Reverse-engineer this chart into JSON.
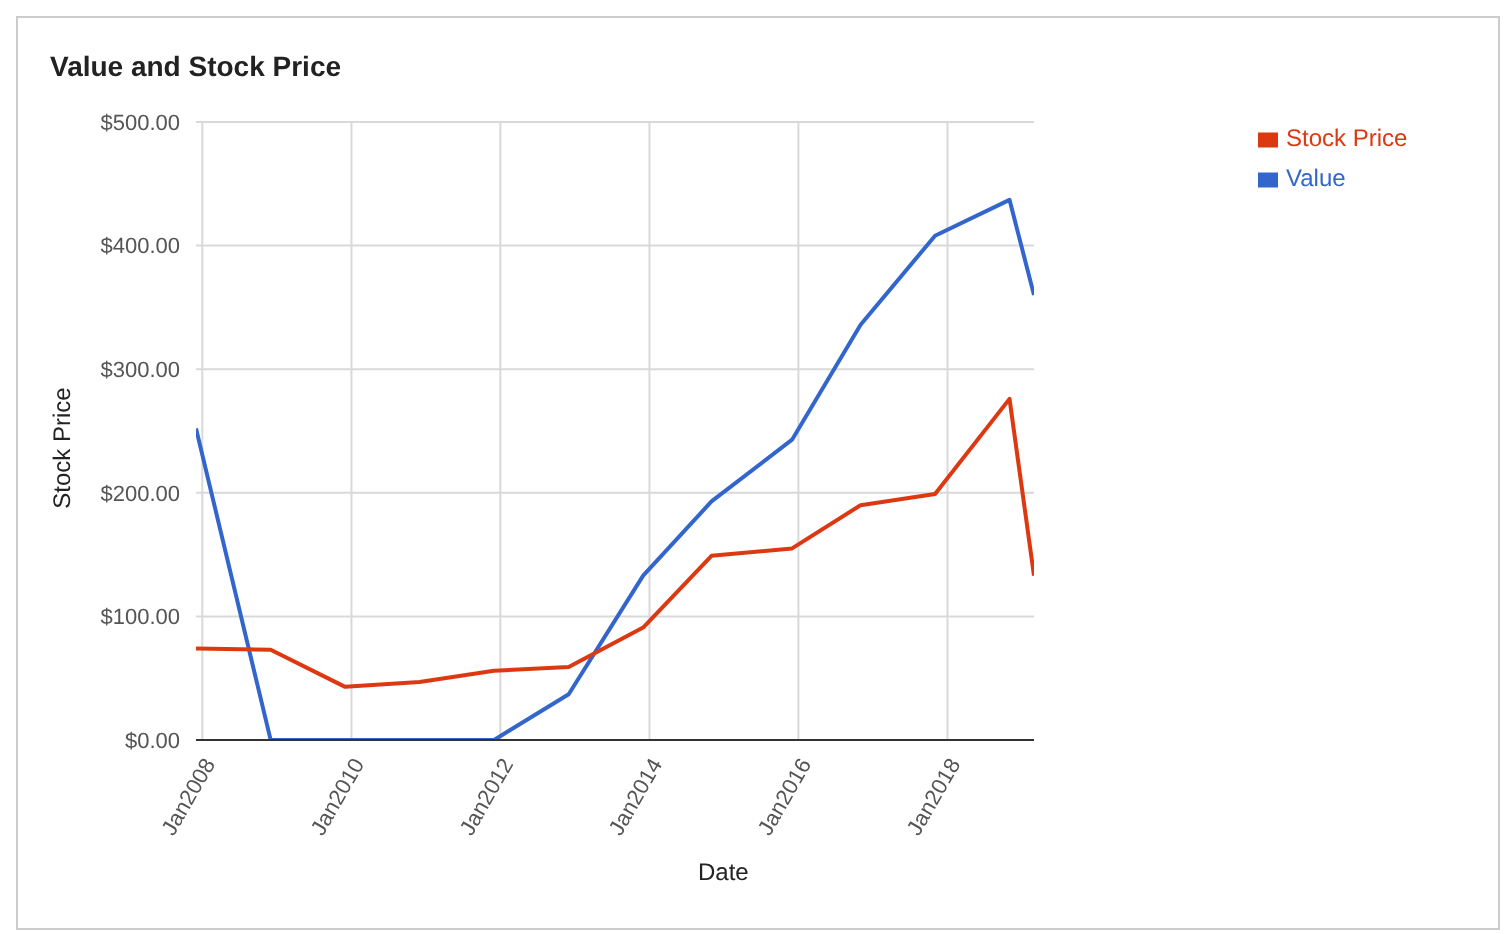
{
  "chart_data": {
    "type": "line",
    "title": "Value and Stock Price",
    "xlabel": "Date",
    "ylabel": "Stock Price",
    "x": [
      "2007-12",
      "2008-12",
      "2009-12",
      "2010-12",
      "2011-12",
      "2012-12",
      "2013-12",
      "2014-11",
      "2015-12",
      "2016-11",
      "2017-11",
      "2018-11",
      "2019-03"
    ],
    "series": [
      {
        "name": "Value",
        "color": "#3366cc",
        "values": [
          252,
          0,
          0,
          0,
          0,
          37,
          133,
          193,
          243,
          336,
          408,
          437,
          360
        ]
      },
      {
        "name": "Stock Price",
        "color": "#dc3912",
        "values": [
          74,
          73,
          43,
          47,
          56,
          59,
          91,
          149,
          155,
          190,
          199,
          276,
          133
        ]
      }
    ],
    "xlim": [
      "2007-12",
      "2019-03"
    ],
    "xticks": [
      {
        "value": "2008-01",
        "label": "Jan2008"
      },
      {
        "value": "2010-01",
        "label": "Jan2010"
      },
      {
        "value": "2012-01",
        "label": "Jan2012"
      },
      {
        "value": "2014-01",
        "label": "Jan2014"
      },
      {
        "value": "2016-01",
        "label": "Jan2016"
      },
      {
        "value": "2018-01",
        "label": "Jan2018"
      }
    ],
    "ylim": [
      0,
      500
    ],
    "yticks": [
      {
        "value": 0,
        "label": "$0.00"
      },
      {
        "value": 100,
        "label": "$100.00"
      },
      {
        "value": 200,
        "label": "$200.00"
      },
      {
        "value": 300,
        "label": "$300.00"
      },
      {
        "value": 400,
        "label": "$400.00"
      },
      {
        "value": 500,
        "label": "$500.00"
      }
    ],
    "grid": true,
    "legend": "top right",
    "marker": "none",
    "line_style": "solid"
  }
}
